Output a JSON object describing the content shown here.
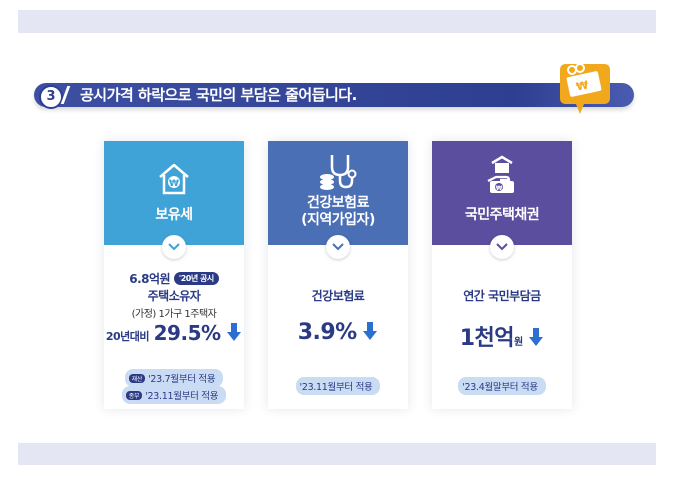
{
  "section": {
    "number": "3",
    "title": "공시가격 하락으로 국민의 부담은 줄어듭니다."
  },
  "colors": {
    "card1": "#3fa3d8",
    "card2": "#4a6fb5",
    "card3": "#5c4e9e",
    "accent": "#2b3a85",
    "badge": "#f2a81d"
  },
  "cards": [
    {
      "icon": "house-won-icon",
      "label": "보유세",
      "line1_value": "6.8억원",
      "line1_tag": "'20년 공시",
      "line2": "주택소유자",
      "line3": "(가정) 1가구 1주택자",
      "compare_label": "20년대비",
      "compare_value": "29.5%",
      "notes": [
        {
          "tag": "재산",
          "text": "'23.7월부터 적용"
        },
        {
          "tag": "종부",
          "text": "'23.11월부터 적용"
        }
      ]
    },
    {
      "icon": "stethoscope-coins-icon",
      "label_line1": "건강보험료",
      "label_line2": "(지역가입자)",
      "line1": "건강보험료",
      "value": "3.9%",
      "note": "'23.11월부터 적용"
    },
    {
      "icon": "hand-house-won-icon",
      "label": "국민주택채권",
      "line1": "연간 국민부담금",
      "value": "1천억",
      "value_unit": "원",
      "note": "'23.4월말부터 적용"
    }
  ]
}
